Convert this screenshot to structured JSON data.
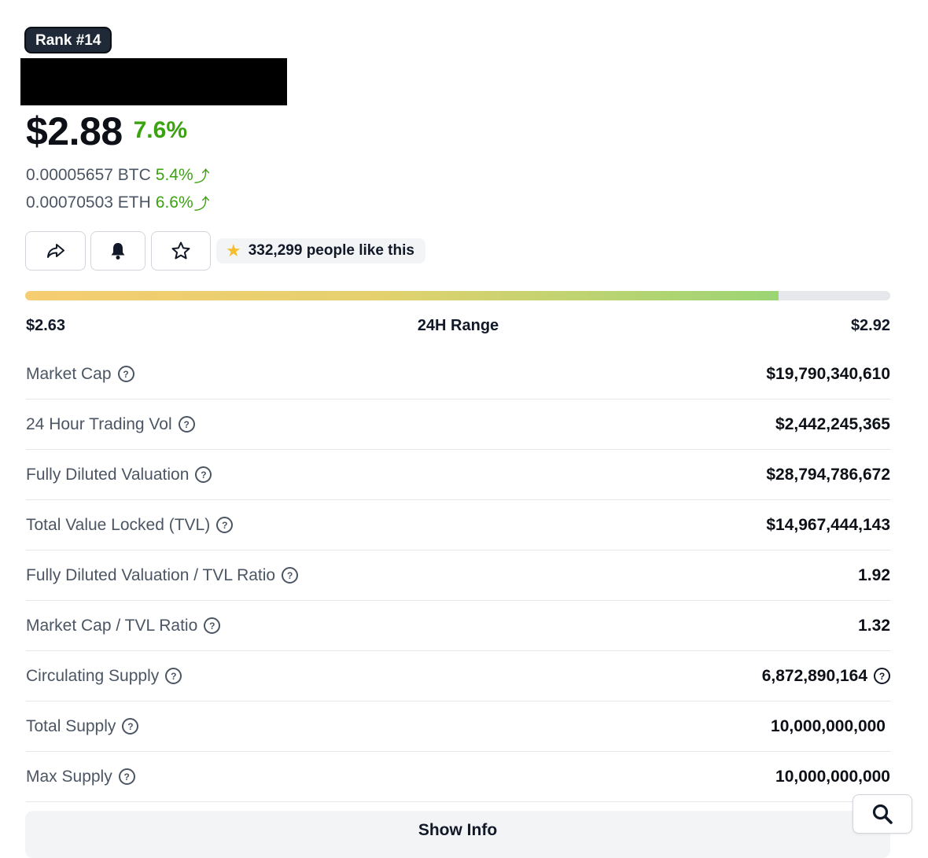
{
  "coin": {
    "rank": "Rank #14",
    "price": "$2.88",
    "price_change": "7.6%"
  },
  "conversions": [
    {
      "value": "0.00005657 BTC",
      "change": "5.4%"
    },
    {
      "value": "0.00070503 ETH",
      "change": "6.6%"
    }
  ],
  "actions": {
    "share_icon": "share-icon",
    "alert_icon": "bell-icon",
    "watchlist_icon": "star-outline-icon",
    "likes": "332,299 people like this"
  },
  "range_24h": {
    "low": "$2.63",
    "label": "24H Range",
    "high": "$2.92",
    "position": 0.871
  },
  "stats": [
    {
      "label": "Market Cap",
      "value": "$19,790,340,610"
    },
    {
      "label": "24 Hour Trading Vol",
      "value": "$2,442,245,365"
    },
    {
      "label": "Fully Diluted Valuation",
      "value": "$28,794,786,672"
    },
    {
      "label": "Total Value Locked (TVL)",
      "value": "$14,967,444,143"
    },
    {
      "label": "Fully Diluted Valuation / TVL Ratio",
      "value": "1.92"
    },
    {
      "label": "Market Cap / TVL Ratio",
      "value": "1.32"
    },
    {
      "label": "Circulating Supply",
      "value": "6,872,890,164"
    },
    {
      "label": "Total Supply",
      "value": "10,000,000,000"
    },
    {
      "label": "Max Supply",
      "value": "10,000,000,000"
    }
  ],
  "show_info_label": "Show Info",
  "colors": {
    "positive": "#3ba30f",
    "badge_bg": "#1f2937",
    "range_start": "#f6cd70",
    "range_end": "#9bd574"
  }
}
